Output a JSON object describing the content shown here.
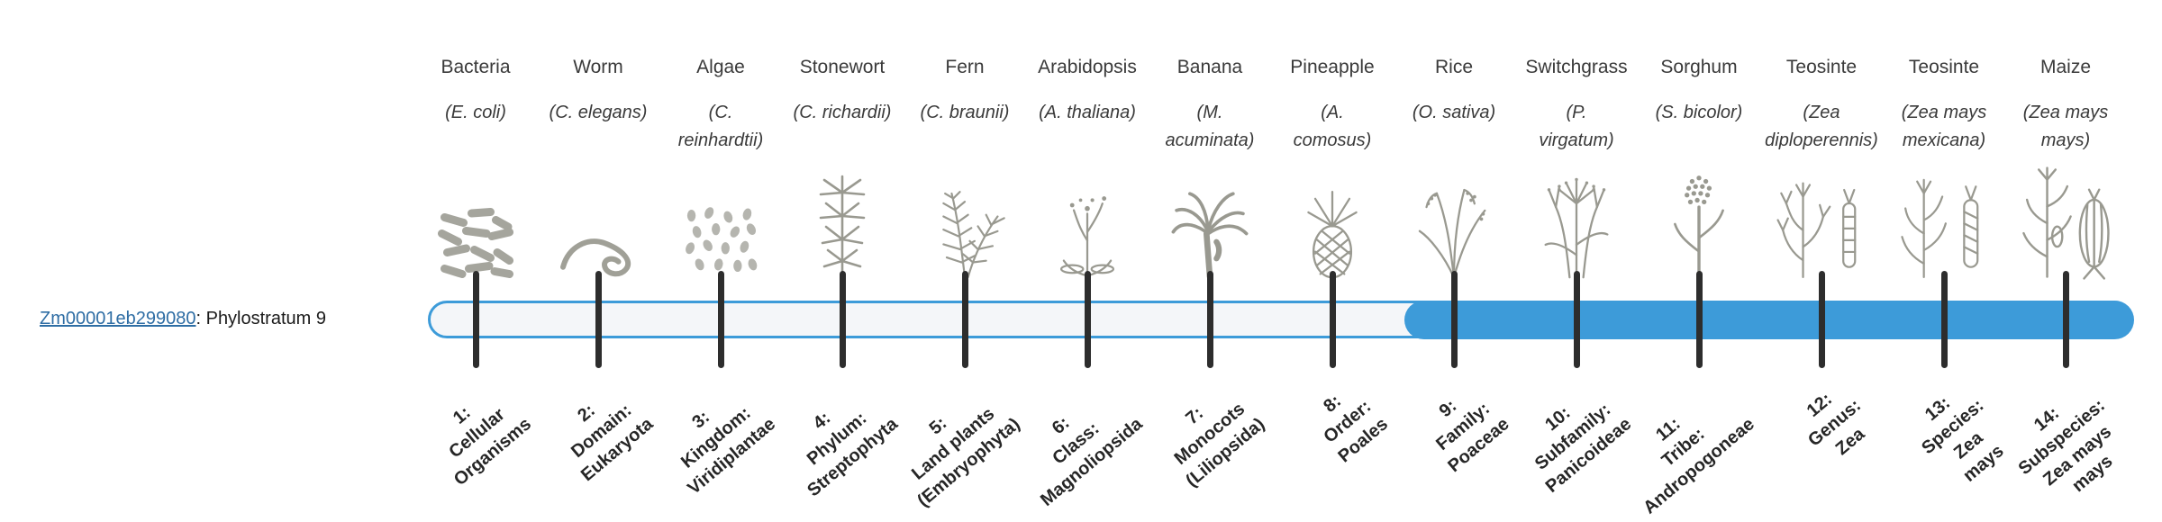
{
  "gene": {
    "id": "Zm00001eb299080",
    "label_suffix": ": Phylostratum 9",
    "phylostratum": 9
  },
  "track": {
    "fill_start_percent": 57.3,
    "highlight_from_stratum": 9,
    "total_strata": 14
  },
  "colors": {
    "track_fill": "#3d9bd9",
    "track_border": "#3d9bd9",
    "track_bg": "#f4f6f9",
    "tick": "#2d2d2d",
    "link": "#2e6da4"
  },
  "columns": [
    {
      "common_name": "Bacteria",
      "scientific_name": "(E. coli)",
      "icon": "bacteria",
      "stratum_label": "1:\nCellular\nOrganisms"
    },
    {
      "common_name": "Worm",
      "scientific_name": "(C. elegans)",
      "icon": "worm",
      "stratum_label": "2:\nDomain:\nEukaryota"
    },
    {
      "common_name": "Algae",
      "scientific_name": "(C.\nreinhardtii)",
      "icon": "algae",
      "stratum_label": "3:\nKingdom:\nViridiplantae"
    },
    {
      "common_name": "Stonewort",
      "scientific_name": "(C. richardii)",
      "icon": "stonewort",
      "stratum_label": "4:\nPhylum:\nStreptophyta"
    },
    {
      "common_name": "Fern",
      "scientific_name": "(C. braunii)",
      "icon": "fern",
      "stratum_label": "5:\nLand plants\n(Embryophyta)"
    },
    {
      "common_name": "Arabidopsis",
      "scientific_name": "(A. thaliana)",
      "icon": "arabidopsis",
      "stratum_label": "6:\nClass:\nMagnoliopsida"
    },
    {
      "common_name": "Banana",
      "scientific_name": "(M.\nacuminata)",
      "icon": "banana",
      "stratum_label": "7:\nMonocots\n(Liliopsida)"
    },
    {
      "common_name": "Pineapple",
      "scientific_name": "(A.\ncomosus)",
      "icon": "pineapple",
      "stratum_label": "8:\nOrder:\nPoales"
    },
    {
      "common_name": "Rice",
      "scientific_name": "(O. sativa)",
      "icon": "rice",
      "stratum_label": "9:\nFamily:\nPoaceae"
    },
    {
      "common_name": "Switchgrass",
      "scientific_name": "(P.\nvirgatum)",
      "icon": "switchgrass",
      "stratum_label": "10:\nSubfamily:\nPanicoideae"
    },
    {
      "common_name": "Sorghum",
      "scientific_name": "(S. bicolor)",
      "icon": "sorghum",
      "stratum_label": "11:\nTribe:\nAndropogoneae"
    },
    {
      "common_name": "Teosinte",
      "scientific_name": "(Zea\ndiploperennis)",
      "icon": "teosinte-diploperennis",
      "stratum_label": "12:\nGenus:\nZea"
    },
    {
      "common_name": "Teosinte",
      "scientific_name": "(Zea mays\nmexicana)",
      "icon": "teosinte-mexicana",
      "stratum_label": "13:\nSpecies:\nZea\nmays"
    },
    {
      "common_name": "Maize",
      "scientific_name": "(Zea mays\nmays)",
      "icon": "maize",
      "stratum_label": "14:\nSubspecies:\nZea mays\nmays"
    }
  ]
}
